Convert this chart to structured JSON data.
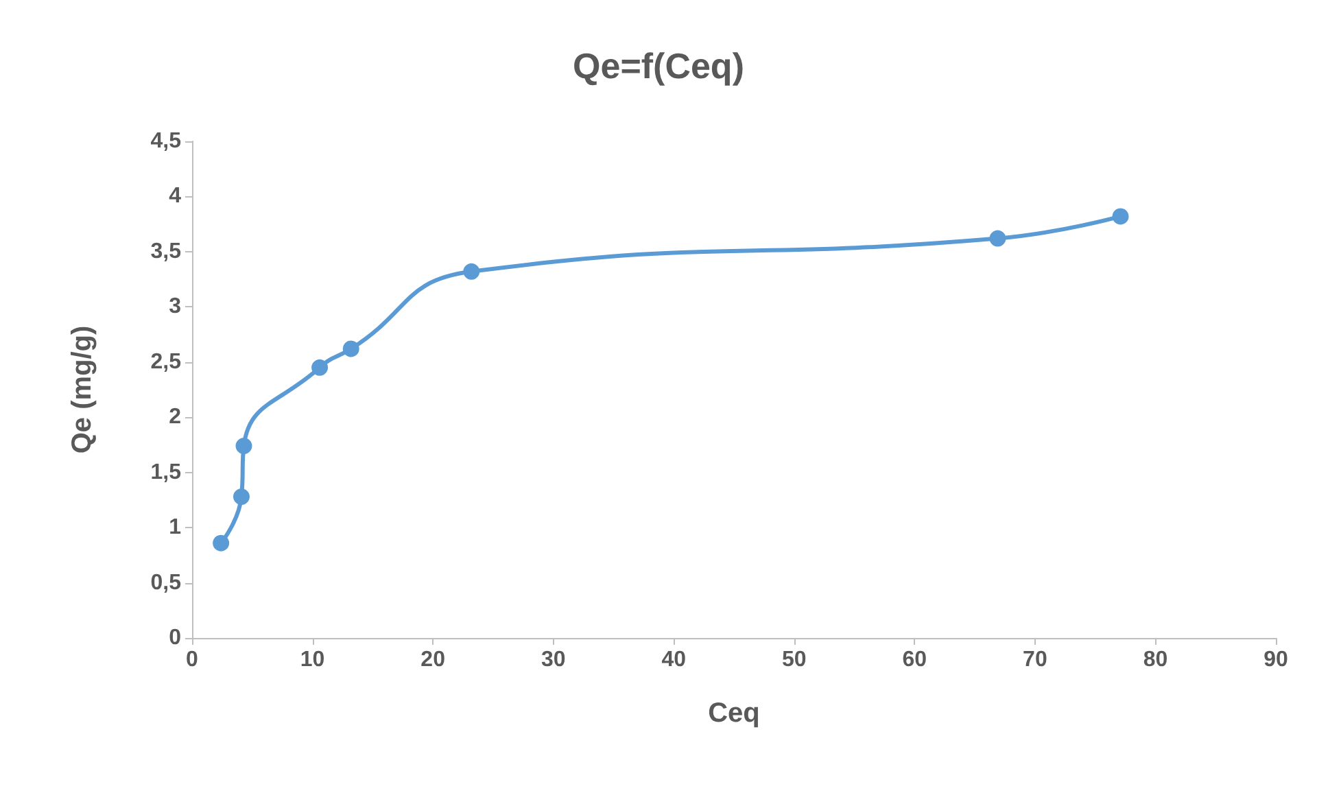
{
  "chart_data": {
    "type": "line",
    "title": "Qe=f(Ceq)",
    "xlabel": "Ceq",
    "ylabel": "Qe (mg/g)",
    "x": [
      2.4,
      4.1,
      4.3,
      10.6,
      13.2,
      23.2,
      66.9,
      77.1
    ],
    "series": [
      {
        "color": "#5b9bd5",
        "values": [
          0.86,
          1.28,
          1.74,
          2.45,
          2.62,
          3.32,
          3.62,
          3.82
        ]
      }
    ],
    "xlim": [
      0,
      90
    ],
    "xticks": [
      0,
      10,
      20,
      30,
      40,
      50,
      60,
      70,
      80,
      90
    ],
    "ylim": [
      0,
      4.5
    ],
    "yticks": [
      0,
      {
        "value": 0.5,
        "label": "0,5"
      },
      1,
      {
        "value": 1.5,
        "label": "1,5"
      },
      2,
      {
        "value": 2.5,
        "label": "2,5"
      },
      3,
      {
        "value": 3.5,
        "label": "3,5"
      },
      4,
      {
        "value": 4.5,
        "label": "4,5"
      }
    ],
    "grid": false,
    "marker": "circle",
    "line_style": "solid"
  }
}
